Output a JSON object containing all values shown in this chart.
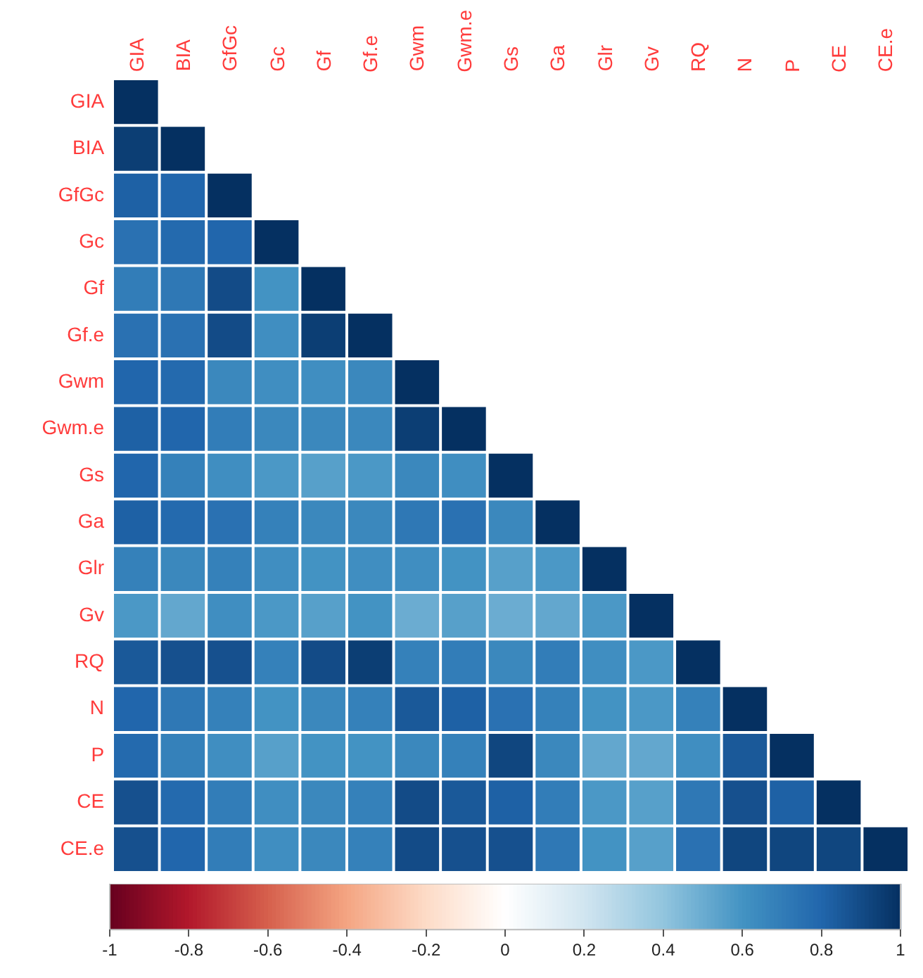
{
  "chart_data": {
    "type": "heatmap",
    "categories": [
      "GIA",
      "BIA",
      "GfGc",
      "Gc",
      "Gf",
      "Gf.e",
      "Gwm",
      "Gwm.e",
      "Gs",
      "Ga",
      "Glr",
      "Gv",
      "RQ",
      "N",
      "P",
      "CE",
      "CE.e"
    ],
    "y_categories": [
      "GIA",
      "BIA",
      "GfGc",
      "Gc",
      "Gf",
      "Gf.e",
      "Gwm",
      "Gwm.e",
      "Gs",
      "Ga",
      "Glr",
      "Gv",
      "RQ",
      "N",
      "P",
      "CE",
      "CE.e"
    ],
    "cells": [
      [
        1,
        null,
        null,
        null,
        null,
        null,
        null,
        null,
        null,
        null,
        null,
        null,
        null,
        null,
        null,
        null,
        null
      ],
      [
        0.95,
        1,
        null,
        null,
        null,
        null,
        null,
        null,
        null,
        null,
        null,
        null,
        null,
        null,
        null,
        null,
        null
      ],
      [
        0.82,
        0.8,
        1,
        null,
        null,
        null,
        null,
        null,
        null,
        null,
        null,
        null,
        null,
        null,
        null,
        null,
        null
      ],
      [
        0.75,
        0.78,
        0.8,
        1,
        null,
        null,
        null,
        null,
        null,
        null,
        null,
        null,
        null,
        null,
        null,
        null,
        null
      ],
      [
        0.7,
        0.72,
        0.9,
        0.6,
        1,
        null,
        null,
        null,
        null,
        null,
        null,
        null,
        null,
        null,
        null,
        null,
        null
      ],
      [
        0.75,
        0.75,
        0.9,
        0.62,
        0.95,
        1,
        null,
        null,
        null,
        null,
        null,
        null,
        null,
        null,
        null,
        null,
        null
      ],
      [
        0.8,
        0.78,
        0.65,
        0.62,
        0.62,
        0.65,
        1,
        null,
        null,
        null,
        null,
        null,
        null,
        null,
        null,
        null,
        null
      ],
      [
        0.82,
        0.8,
        0.7,
        0.65,
        0.65,
        0.65,
        0.95,
        1,
        null,
        null,
        null,
        null,
        null,
        null,
        null,
        null,
        null
      ],
      [
        0.8,
        0.68,
        0.62,
        0.58,
        0.55,
        0.58,
        0.65,
        0.62,
        1,
        null,
        null,
        null,
        null,
        null,
        null,
        null,
        null
      ],
      [
        0.82,
        0.78,
        0.75,
        0.68,
        0.65,
        0.65,
        0.72,
        0.75,
        0.65,
        1,
        null,
        null,
        null,
        null,
        null,
        null,
        null
      ],
      [
        0.68,
        0.65,
        0.68,
        0.62,
        0.6,
        0.62,
        0.62,
        0.6,
        0.55,
        0.58,
        1,
        null,
        null,
        null,
        null,
        null,
        null
      ],
      [
        0.58,
        0.52,
        0.62,
        0.58,
        0.55,
        0.6,
        0.5,
        0.55,
        0.5,
        0.52,
        0.58,
        1,
        null,
        null,
        null,
        null,
        null
      ],
      [
        0.85,
        0.88,
        0.88,
        0.68,
        0.9,
        0.95,
        0.68,
        0.7,
        0.65,
        0.7,
        0.62,
        0.58,
        1,
        null,
        null,
        null,
        null
      ],
      [
        0.8,
        0.72,
        0.68,
        0.6,
        0.65,
        0.68,
        0.85,
        0.82,
        0.75,
        0.68,
        0.6,
        0.58,
        0.68,
        1,
        null,
        null,
        null
      ],
      [
        0.78,
        0.68,
        0.62,
        0.55,
        0.6,
        0.6,
        0.65,
        0.68,
        0.92,
        0.65,
        0.52,
        0.52,
        0.62,
        0.85,
        1,
        null,
        null
      ],
      [
        0.88,
        0.78,
        0.7,
        0.62,
        0.65,
        0.68,
        0.9,
        0.85,
        0.82,
        0.7,
        0.58,
        0.55,
        0.72,
        0.88,
        0.82,
        1,
        null
      ],
      [
        0.88,
        0.8,
        0.7,
        0.62,
        0.65,
        0.68,
        0.9,
        0.88,
        0.88,
        0.72,
        0.6,
        0.55,
        0.75,
        0.92,
        0.92,
        0.92,
        1
      ]
    ],
    "clim": [
      -1,
      1
    ],
    "cticks": [
      -1,
      -0.8,
      -0.6,
      -0.4,
      -0.2,
      0,
      0.2,
      0.4,
      0.6,
      0.8,
      1
    ]
  }
}
